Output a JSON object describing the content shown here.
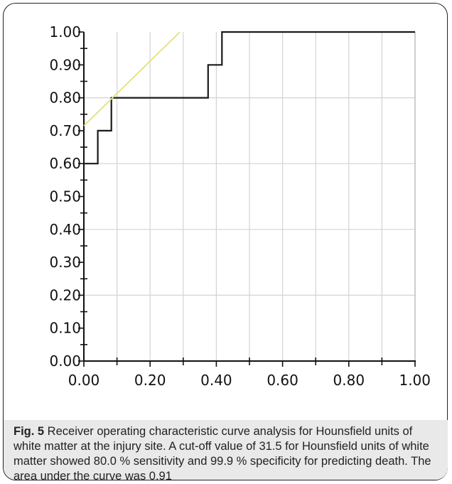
{
  "chart_data": {
    "type": "line",
    "title": "",
    "xlabel": "",
    "ylabel": "",
    "xlim": [
      0,
      1
    ],
    "ylim": [
      0,
      1
    ],
    "grid": true,
    "x_ticks": [
      "0.00",
      "0.20",
      "0.40",
      "0.60",
      "0.80",
      "1.00"
    ],
    "y_ticks": [
      "0.00",
      "0.10",
      "0.20",
      "0.30",
      "0.40",
      "0.50",
      "0.60",
      "0.70",
      "0.80",
      "0.90",
      "1.00"
    ],
    "series": [
      {
        "color": "#1a1a1a",
        "x": [
          0.0,
          0.042,
          0.042,
          0.083,
          0.083,
          0.375,
          0.375,
          0.417,
          0.417,
          1.0
        ],
        "y": [
          0.6,
          0.6,
          0.7,
          0.7,
          0.8,
          0.8,
          0.9,
          0.9,
          1.0,
          1.0
        ]
      },
      {
        "color": "#e6e07a",
        "x": [
          0.0,
          0.29
        ],
        "y": [
          0.715,
          1.0
        ]
      }
    ]
  },
  "caption": {
    "label": "Fig. 5",
    "text": " Receiver operating characteristic curve analysis for Hounsfield units of white matter at the injury site. A cut-off value of 31.5 for Hounsfield units of white matter showed 80.0 % sensitivity and 99.9 % specificity for predicting death. The area under the curve was 0.91"
  }
}
